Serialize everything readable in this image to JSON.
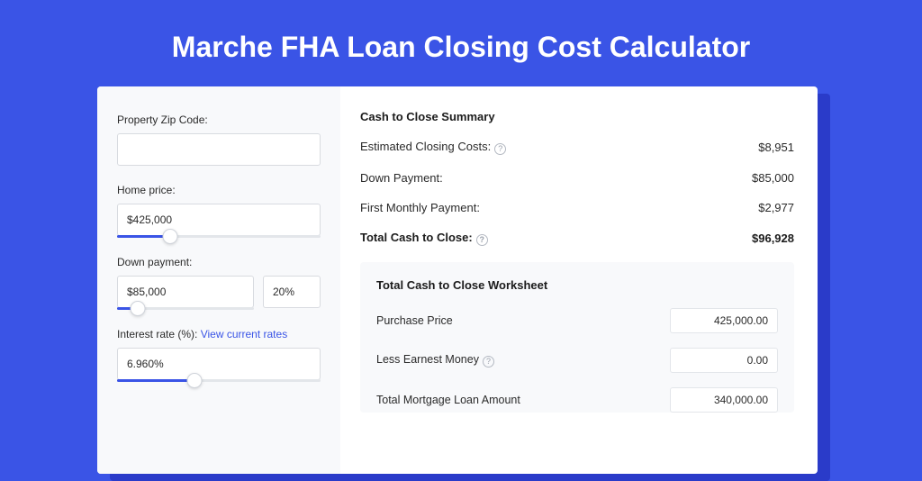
{
  "colors": {
    "page_bg": "#3a54e6",
    "card_bg": "#ffffff",
    "shadow_bg": "#2a3bc9",
    "panel_bg": "#f8f9fb",
    "input_border": "#d8dbe0",
    "slider_track": "#e3e6ea",
    "slider_fill": "#3a54e6",
    "text_primary": "#2a2a2a",
    "text_strong": "#1b1b1b",
    "link": "#3a54e6",
    "help_border": "#b4b9c2",
    "help_text": "#9aa0ab"
  },
  "title": "Marche FHA Loan Closing Cost Calculator",
  "form": {
    "zip_label": "Property Zip Code:",
    "zip_value": "",
    "home_price_label": "Home price:",
    "home_price_value": "$425,000",
    "home_price_slider_pct": 26,
    "down_payment_label": "Down payment:",
    "down_payment_value": "$85,000",
    "down_payment_pct_value": "20%",
    "down_payment_slider_pct": 15,
    "interest_label_prefix": "Interest rate (%): ",
    "interest_link": "View current rates",
    "interest_value": "6.960%",
    "interest_slider_pct": 38
  },
  "summary": {
    "title": "Cash to Close Summary",
    "rows": [
      {
        "label": "Estimated Closing Costs:",
        "help": true,
        "value": "$8,951",
        "bold": false
      },
      {
        "label": "Down Payment:",
        "help": false,
        "value": "$85,000",
        "bold": false
      },
      {
        "label": "First Monthly Payment:",
        "help": false,
        "value": "$2,977",
        "bold": false
      },
      {
        "label": "Total Cash to Close:",
        "help": true,
        "value": "$96,928",
        "bold": true
      }
    ]
  },
  "worksheet": {
    "title": "Total Cash to Close Worksheet",
    "rows": [
      {
        "label": "Purchase Price",
        "help": false,
        "value": "425,000.00"
      },
      {
        "label": "Less Earnest Money",
        "help": true,
        "value": "0.00"
      },
      {
        "label": "Total Mortgage Loan Amount",
        "help": false,
        "value": "340,000.00"
      }
    ]
  }
}
